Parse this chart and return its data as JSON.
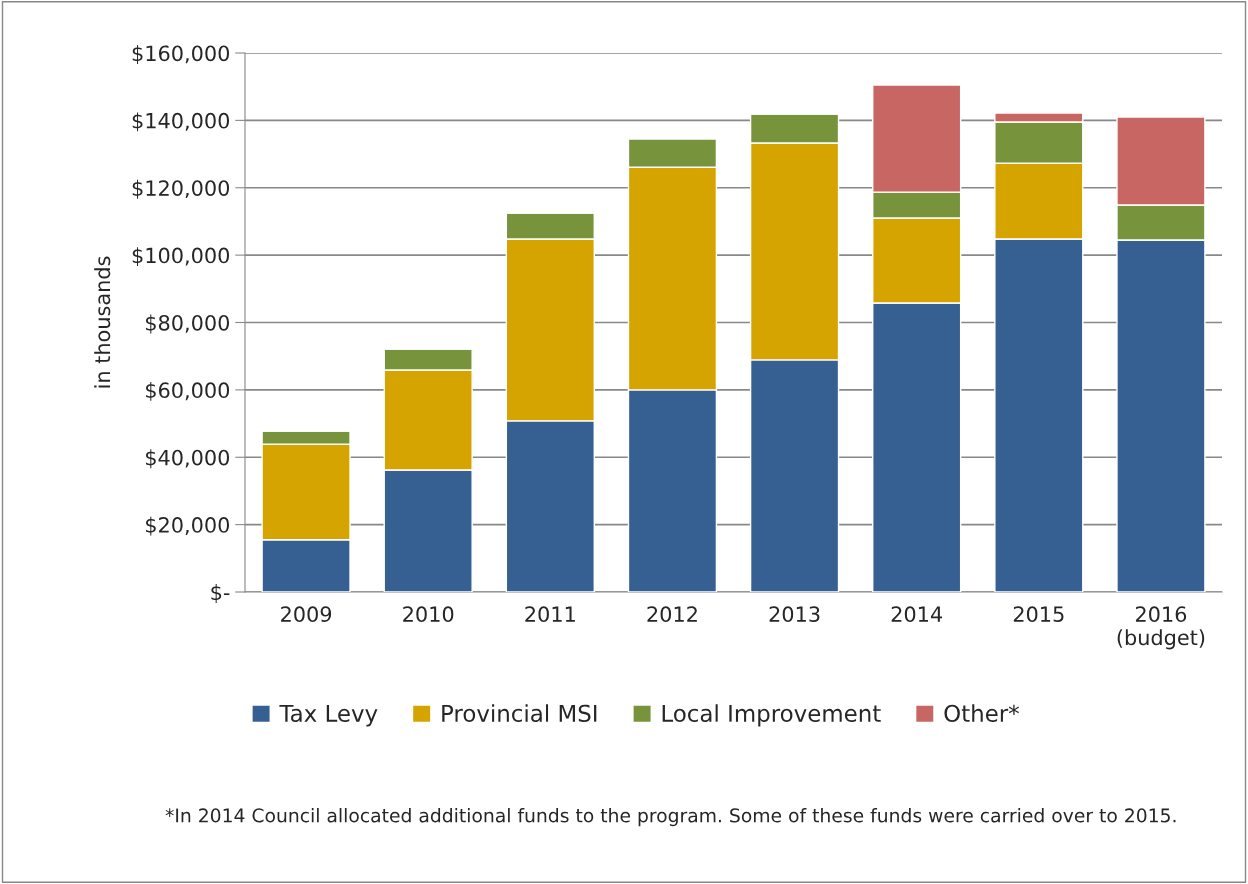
{
  "chart_data": {
    "type": "bar",
    "stacked": true,
    "ylabel": "in thousands",
    "categories": [
      "2009",
      "2010",
      "2011",
      "2012",
      "2013",
      "2014",
      "2015",
      "2016\n(budget)"
    ],
    "series": [
      {
        "name": "Tax Levy",
        "color": "#366092",
        "values": [
          15500,
          36200,
          50800,
          60000,
          68900,
          85800,
          104800,
          104500
        ]
      },
      {
        "name": "Provincial MSI",
        "color": "#d6a400",
        "values": [
          28400,
          29700,
          54000,
          66100,
          64400,
          25200,
          22500,
          null
        ]
      },
      {
        "name": "Local Improvement",
        "color": "#77933c",
        "values": [
          3900,
          6200,
          7700,
          8400,
          8600,
          7700,
          12200,
          10400
        ]
      },
      {
        "name": "Other*",
        "color": "#c86663",
        "values": [
          null,
          null,
          null,
          null,
          null,
          31800,
          2700,
          26100
        ]
      }
    ],
    "ylim": [
      0,
      160000
    ],
    "yticks": [
      {
        "value": 0,
        "label": "$-"
      },
      {
        "value": 20000,
        "label": "$20,000"
      },
      {
        "value": 40000,
        "label": "$40,000"
      },
      {
        "value": 60000,
        "label": "$60,000"
      },
      {
        "value": 80000,
        "label": "$80,000"
      },
      {
        "value": 100000,
        "label": "$100,000"
      },
      {
        "value": 120000,
        "label": "$120,000"
      },
      {
        "value": 140000,
        "label": "$140,000"
      },
      {
        "value": 160000,
        "label": "$160,000"
      }
    ],
    "grid": "y",
    "legend": "bottom",
    "annotations": [
      "*In 2014 Council allocated additional funds to the program. Some of these funds were carried over to 2015."
    ]
  }
}
